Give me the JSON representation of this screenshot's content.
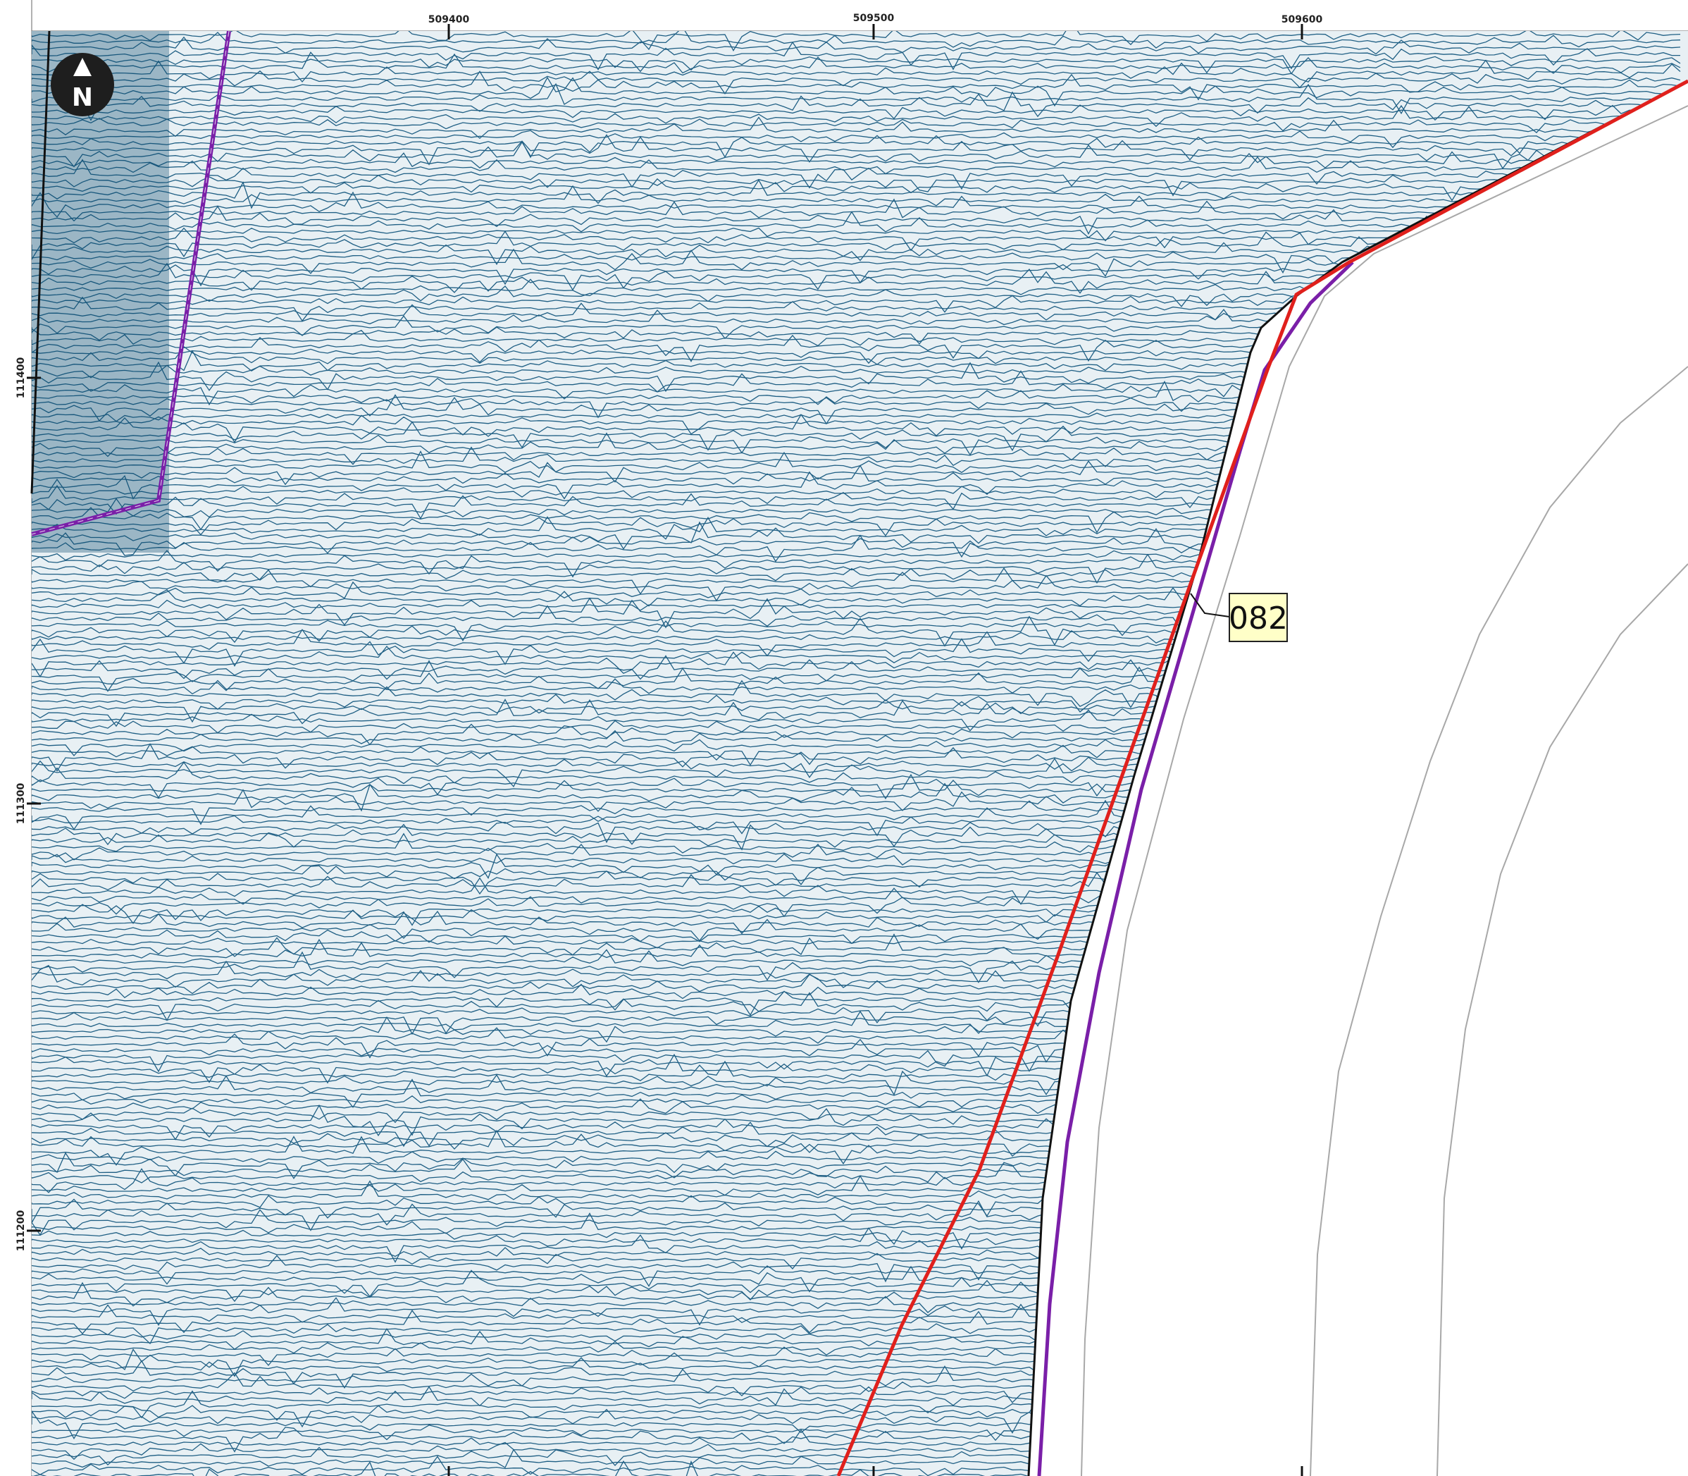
{
  "map": {
    "grid_x_labels": [
      "509400",
      "509500",
      "509600"
    ],
    "grid_y_labels": [
      "111400",
      "111300",
      "111200"
    ],
    "callout_label": "082",
    "north_arrow_letter": "N",
    "colors": {
      "survey_trace": "#1f5f84",
      "survey_fill": "#e8f0f4",
      "boundary_purple": "#7a1fa8",
      "route_red": "#e0201c",
      "callout_fill": "#ffffc8",
      "contour_grey": "#a8a8a8"
    },
    "icons": [
      "north-arrow-icon"
    ]
  }
}
